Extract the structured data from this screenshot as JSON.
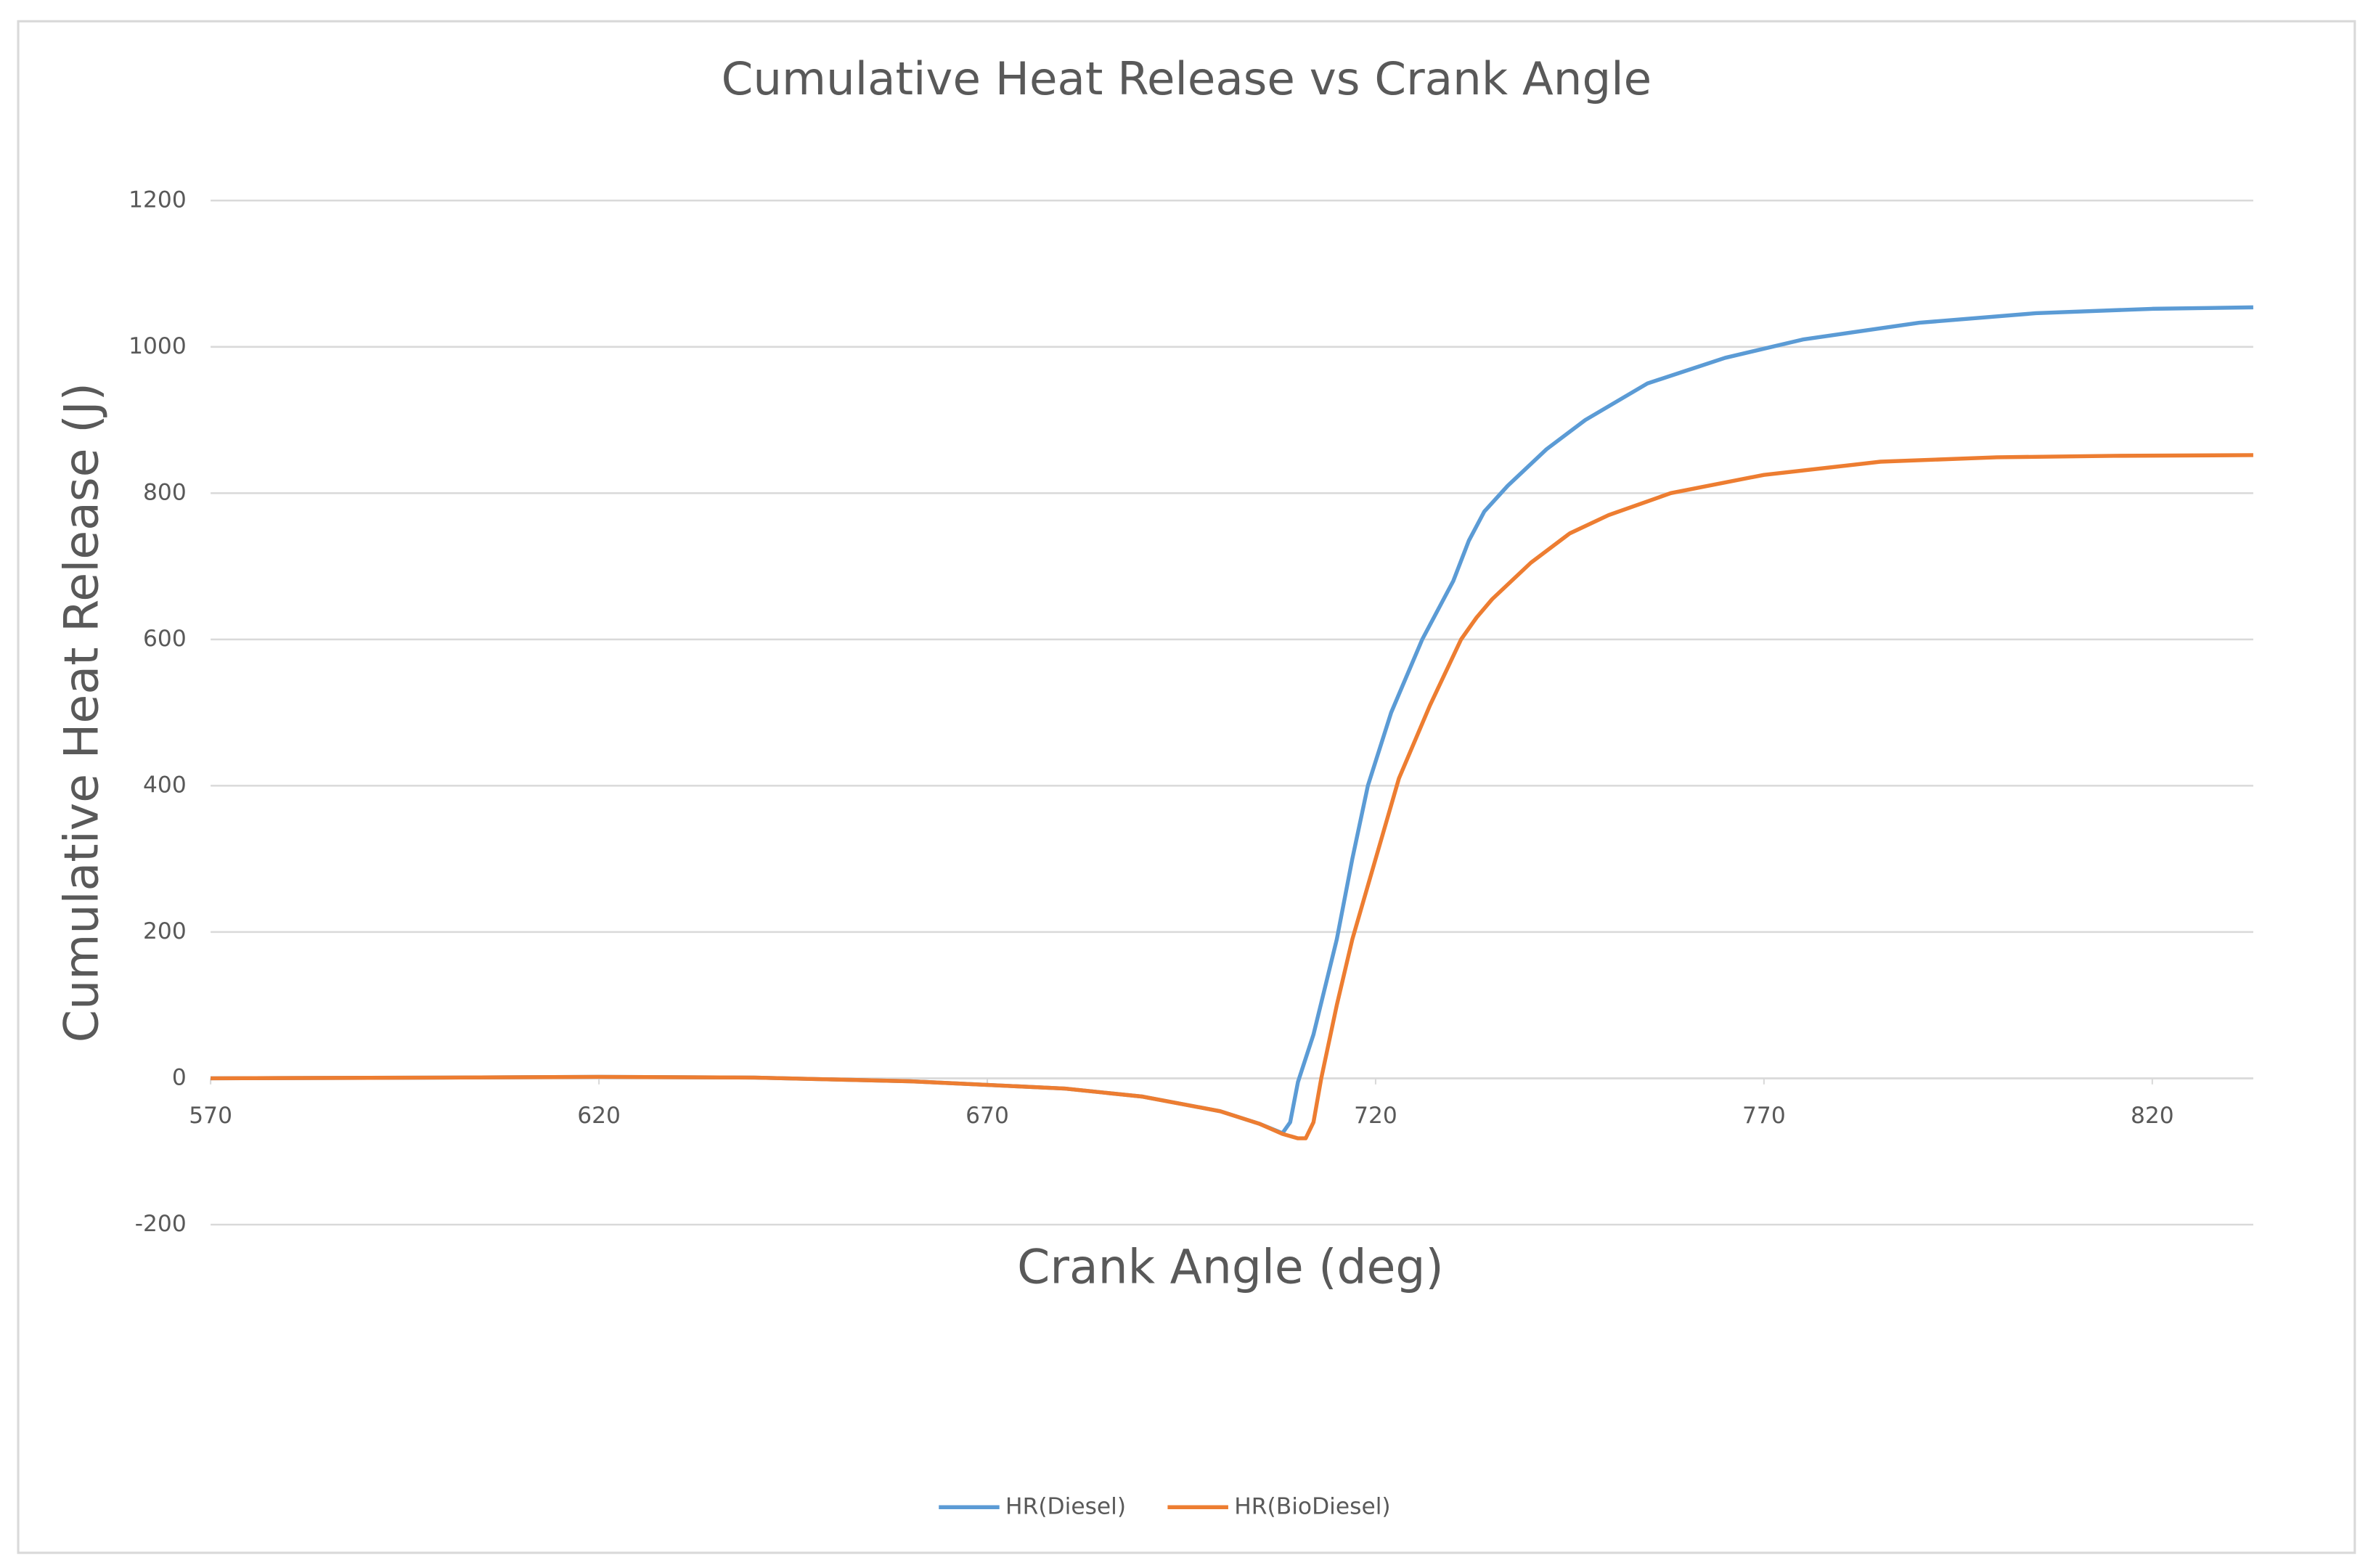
{
  "chart_data": {
    "type": "line",
    "title": "Cumulative Heat Release vs Crank Angle",
    "x_label": "Crank Angle (deg)",
    "y_label": "Cumulative Heat Release (J)",
    "xlim": [
      570,
      833
    ],
    "xticks": [
      570,
      620,
      670,
      720,
      770,
      820
    ],
    "ylim": [
      -200,
      1200
    ],
    "yticks": [
      -200,
      0,
      200,
      400,
      600,
      800,
      1000,
      1200
    ],
    "grid": true,
    "legend": "bottom",
    "series": [
      {
        "name": "HR(Diesel)",
        "color": "#5b9bd5",
        "x": [
          570,
          600,
          620,
          640,
          660,
          680,
          690,
          700,
          705,
          708,
          709,
          710,
          712,
          715,
          717,
          719,
          722,
          726,
          730,
          732,
          734,
          737,
          742,
          747,
          755,
          765,
          775,
          790,
          805,
          820,
          833
        ],
        "values": [
          0,
          1,
          2,
          1,
          -4,
          -14,
          -25,
          -45,
          -62,
          -75,
          -60,
          -5,
          60,
          190,
          300,
          400,
          500,
          600,
          680,
          735,
          775,
          810,
          860,
          900,
          950,
          985,
          1010,
          1033,
          1046,
          1052,
          1054
        ]
      },
      {
        "name": "HR(BioDiesel)",
        "color": "#ed7d31",
        "x": [
          570,
          600,
          620,
          640,
          660,
          680,
          690,
          700,
          705,
          708,
          710,
          711,
          712,
          713,
          715,
          717,
          720,
          723,
          727,
          731,
          733,
          735,
          740,
          745,
          750,
          758,
          770,
          785,
          800,
          815,
          833
        ],
        "values": [
          0,
          1,
          2,
          1,
          -4,
          -14,
          -25,
          -45,
          -62,
          -76,
          -82,
          -82,
          -60,
          0,
          100,
          190,
          300,
          410,
          510,
          600,
          630,
          655,
          705,
          745,
          770,
          800,
          825,
          843,
          849,
          851,
          852
        ]
      }
    ]
  }
}
